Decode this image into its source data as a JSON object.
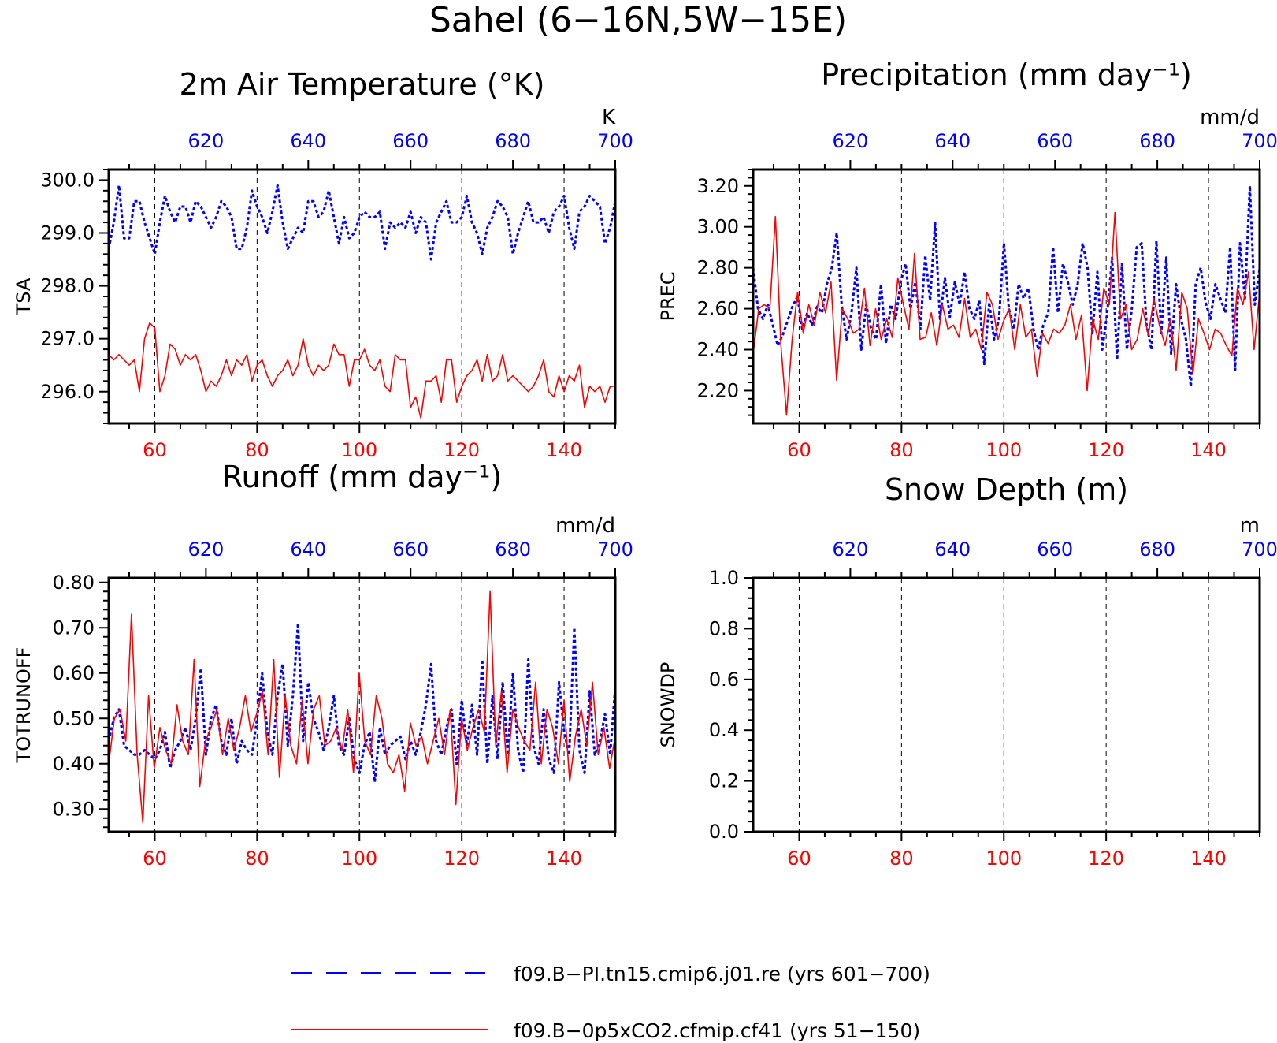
{
  "title": "Sahel (6−16N,5W−15E)",
  "colors": {
    "red": "#ff0000",
    "blue": "#0000ff",
    "axis": "#000000",
    "grid": "#000000"
  },
  "legend": {
    "entries": [
      {
        "label": "f09.B−PI.tn15.cmip6.j01.re (yrs 601−700)",
        "color": "#0000ff",
        "style": "dashed"
      },
      {
        "label": "f09.B−0p5xCO2.cfmip.cf41 (yrs 51−150)",
        "color": "#ff0000",
        "style": "solid"
      }
    ]
  },
  "chart_data": [
    {
      "type": "line",
      "title": "2m Air Temperature (°K)",
      "ylabel": "TSA",
      "units": "K",
      "xlim": [
        51,
        150
      ],
      "x2lim": [
        601,
        700
      ],
      "ylim": [
        295.4,
        300.2
      ],
      "bottom_ticks": [
        "60",
        "80",
        "100",
        "120",
        "140"
      ],
      "top_ticks": [
        "620",
        "640",
        "660",
        "680",
        "700"
      ],
      "y_ticks": [
        "296.0",
        "297.0",
        "298.0",
        "299.0",
        "300.0"
      ],
      "grid": "vertical dashed at x = 60, 80, 100, 120, 140",
      "series": [
        {
          "axis": "top",
          "color": "#0000ff",
          "style": "dashed",
          "values": [
            298.7,
            299.2,
            299.9,
            298.9,
            298.9,
            299.6,
            299.6,
            299.2,
            298.9,
            298.6,
            299.2,
            299.7,
            299.4,
            299.2,
            299.5,
            299.5,
            299.2,
            299.6,
            299.5,
            299.3,
            299.1,
            299.3,
            299.6,
            299.5,
            299.3,
            298.7,
            298.7,
            299.1,
            299.8,
            299.5,
            299.3,
            299.0,
            299.4,
            299.9,
            299.2,
            298.7,
            298.9,
            299.1,
            299.0,
            299.6,
            299.6,
            299.3,
            299.4,
            299.8,
            299.3,
            298.8,
            299.3,
            298.9,
            299.0,
            299.3,
            299.4,
            299.3,
            299.3,
            299.4,
            298.7,
            299.2,
            299.1,
            299.2,
            299.1,
            299.4,
            299.0,
            299.3,
            299.2,
            298.5,
            299.2,
            299.4,
            299.6,
            299.2,
            299.2,
            299.3,
            299.7,
            299.2,
            299.0,
            298.6,
            299.1,
            299.3,
            299.6,
            299.5,
            299.3,
            298.6,
            299.0,
            299.3,
            299.6,
            299.2,
            299.2,
            299.3,
            299.0,
            299.4,
            299.5,
            299.7,
            299.1,
            298.7,
            299.4,
            299.5,
            299.7,
            299.6,
            299.5,
            298.8,
            299.1,
            299.6
          ]
        },
        {
          "axis": "bottom",
          "color": "#ff0000",
          "style": "solid",
          "values": [
            296.7,
            296.6,
            296.7,
            296.6,
            296.5,
            296.6,
            296.0,
            297.0,
            297.3,
            297.2,
            296.0,
            296.3,
            296.9,
            296.8,
            296.5,
            296.7,
            296.6,
            296.7,
            296.4,
            296.0,
            296.2,
            296.1,
            296.3,
            296.6,
            296.3,
            296.6,
            296.5,
            296.7,
            296.2,
            296.5,
            296.6,
            296.3,
            296.1,
            296.3,
            296.4,
            296.6,
            296.3,
            296.5,
            297.0,
            296.5,
            296.3,
            296.5,
            296.4,
            296.5,
            296.9,
            296.7,
            296.7,
            296.1,
            296.6,
            296.6,
            296.8,
            296.5,
            296.4,
            296.6,
            296.1,
            296.0,
            296.7,
            296.6,
            296.6,
            295.7,
            295.9,
            295.5,
            296.2,
            296.2,
            296.3,
            295.8,
            296.6,
            296.6,
            295.8,
            296.1,
            296.3,
            296.4,
            296.6,
            296.2,
            296.7,
            296.2,
            296.3,
            296.7,
            296.2,
            296.3,
            296.2,
            296.1,
            296.0,
            296.1,
            296.3,
            296.6,
            296.0,
            295.9,
            296.3,
            296.0,
            296.3,
            296.2,
            296.5,
            295.7,
            296.1,
            296.0,
            296.1,
            295.8,
            296.1,
            296.1
          ]
        }
      ]
    },
    {
      "type": "line",
      "title": "Precipitation (mm day⁻¹)",
      "ylabel": "PREC",
      "units": "mm/d",
      "xlim": [
        51,
        150
      ],
      "x2lim": [
        601,
        700
      ],
      "ylim": [
        2.04,
        3.28
      ],
      "bottom_ticks": [
        "60",
        "80",
        "100",
        "120",
        "140"
      ],
      "top_ticks": [
        "620",
        "640",
        "660",
        "680",
        "700"
      ],
      "y_ticks": [
        "2.20",
        "2.40",
        "2.60",
        "2.80",
        "3.00",
        "3.20"
      ],
      "grid": "vertical dashed at x = 60, 80, 100, 120, 140",
      "series": [
        {
          "axis": "top",
          "color": "#0000ff",
          "style": "dashed",
          "values": [
            2.8,
            2.6,
            2.55,
            2.62,
            2.52,
            2.42,
            2.47,
            2.54,
            2.61,
            2.66,
            2.5,
            2.58,
            2.52,
            2.61,
            2.58,
            2.72,
            2.8,
            2.97,
            2.62,
            2.45,
            2.58,
            2.8,
            2.4,
            2.62,
            2.5,
            2.45,
            2.72,
            2.43,
            2.62,
            2.55,
            2.73,
            2.82,
            2.6,
            2.73,
            2.5,
            2.86,
            2.64,
            3.02,
            2.55,
            2.75,
            2.56,
            2.73,
            2.62,
            2.78,
            2.6,
            2.55,
            2.64,
            2.33,
            2.63,
            2.45,
            2.55,
            2.92,
            2.6,
            2.5,
            2.72,
            2.65,
            2.7,
            2.5,
            2.4,
            2.52,
            2.58,
            2.9,
            2.58,
            2.82,
            2.73,
            2.62,
            2.72,
            2.92,
            2.8,
            2.48,
            2.78,
            2.4,
            2.58,
            2.85,
            2.35,
            2.82,
            2.4,
            2.6,
            2.9,
            2.92,
            2.52,
            2.4,
            2.93,
            2.48,
            2.85,
            2.38,
            2.72,
            2.55,
            2.45,
            2.22,
            2.72,
            2.8,
            2.63,
            2.55,
            2.72,
            2.65,
            2.58,
            2.9,
            2.3,
            2.92,
            2.65,
            3.2,
            2.62,
            2.8
          ]
        },
        {
          "axis": "bottom",
          "color": "#ff0000",
          "style": "solid",
          "values": [
            2.38,
            2.6,
            2.62,
            2.6,
            3.05,
            2.42,
            2.08,
            2.45,
            2.68,
            2.48,
            2.62,
            2.52,
            2.68,
            2.58,
            2.73,
            2.25,
            2.6,
            2.55,
            2.48,
            2.5,
            2.7,
            2.42,
            2.6,
            2.45,
            2.55,
            2.46,
            2.75,
            2.62,
            2.5,
            2.87,
            2.45,
            2.46,
            2.58,
            2.42,
            2.62,
            2.5,
            2.52,
            2.46,
            2.65,
            2.46,
            2.5,
            2.4,
            2.68,
            2.62,
            2.45,
            2.54,
            2.6,
            2.4,
            2.62,
            2.46,
            2.5,
            2.27,
            2.48,
            2.43,
            2.5,
            2.48,
            2.52,
            2.62,
            2.45,
            2.57,
            2.2,
            2.55,
            2.45,
            2.7,
            2.62,
            3.07,
            2.55,
            2.62,
            2.4,
            2.45,
            2.6,
            2.47,
            2.65,
            2.52,
            2.42,
            2.55,
            2.3,
            2.68,
            2.6,
            2.28,
            2.55,
            2.48,
            2.4,
            2.5,
            2.48,
            2.42,
            2.37,
            2.7,
            2.62,
            2.78,
            2.4,
            2.68
          ]
        }
      ]
    },
    {
      "type": "line",
      "title": "Runoff (mm day⁻¹)",
      "ylabel": "TOTRUNOFF",
      "units": "mm/d",
      "xlim": [
        51,
        150
      ],
      "x2lim": [
        601,
        700
      ],
      "ylim": [
        0.25,
        0.81
      ],
      "bottom_ticks": [
        "60",
        "80",
        "100",
        "120",
        "140"
      ],
      "top_ticks": [
        "620",
        "640",
        "660",
        "680",
        "700"
      ],
      "y_ticks": [
        "0.30",
        "0.40",
        "0.50",
        "0.60",
        "0.70",
        "0.80"
      ],
      "grid": "vertical dashed at x = 60, 80, 100, 120, 140",
      "series": [
        {
          "axis": "top",
          "color": "#0000ff",
          "style": "dashed",
          "values": [
            0.45,
            0.5,
            0.52,
            0.44,
            0.43,
            0.42,
            0.42,
            0.43,
            0.42,
            0.41,
            0.43,
            0.47,
            0.39,
            0.43,
            0.45,
            0.48,
            0.43,
            0.5,
            0.61,
            0.42,
            0.5,
            0.53,
            0.45,
            0.42,
            0.5,
            0.4,
            0.45,
            0.43,
            0.42,
            0.5,
            0.6,
            0.47,
            0.42,
            0.55,
            0.62,
            0.44,
            0.55,
            0.71,
            0.45,
            0.58,
            0.5,
            0.47,
            0.43,
            0.48,
            0.55,
            0.44,
            0.42,
            0.5,
            0.41,
            0.38,
            0.44,
            0.47,
            0.36,
            0.48,
            0.42,
            0.44,
            0.45,
            0.46,
            0.41,
            0.45,
            0.42,
            0.47,
            0.53,
            0.62,
            0.45,
            0.42,
            0.48,
            0.52,
            0.4,
            0.54,
            0.44,
            0.53,
            0.42,
            0.63,
            0.4,
            0.55,
            0.41,
            0.58,
            0.42,
            0.6,
            0.43,
            0.38,
            0.63,
            0.44,
            0.4,
            0.52,
            0.41,
            0.38,
            0.58,
            0.47,
            0.42,
            0.7,
            0.43,
            0.38,
            0.56,
            0.42,
            0.45,
            0.51,
            0.42,
            0.57
          ]
        },
        {
          "axis": "bottom",
          "color": "#ff0000",
          "style": "solid",
          "values": [
            0.4,
            0.5,
            0.52,
            0.45,
            0.73,
            0.42,
            0.27,
            0.55,
            0.39,
            0.48,
            0.43,
            0.4,
            0.53,
            0.45,
            0.42,
            0.63,
            0.35,
            0.45,
            0.48,
            0.52,
            0.42,
            0.5,
            0.43,
            0.48,
            0.55,
            0.47,
            0.51,
            0.56,
            0.42,
            0.63,
            0.37,
            0.55,
            0.44,
            0.4,
            0.54,
            0.4,
            0.52,
            0.55,
            0.44,
            0.45,
            0.48,
            0.43,
            0.52,
            0.38,
            0.6,
            0.45,
            0.42,
            0.55,
            0.5,
            0.4,
            0.38,
            0.42,
            0.34,
            0.49,
            0.44,
            0.46,
            0.4,
            0.45,
            0.5,
            0.42,
            0.52,
            0.31,
            0.5,
            0.43,
            0.48,
            0.52,
            0.47,
            0.78,
            0.44,
            0.56,
            0.38,
            0.52,
            0.48,
            0.45,
            0.43,
            0.58,
            0.4,
            0.52,
            0.48,
            0.4,
            0.54,
            0.36,
            0.46,
            0.52,
            0.44,
            0.58,
            0.42,
            0.48,
            0.39,
            0.46
          ]
        }
      ]
    },
    {
      "type": "line",
      "title": "Snow Depth (m)",
      "ylabel": "SNOWDP",
      "units": "m",
      "xlim": [
        51,
        150
      ],
      "x2lim": [
        601,
        700
      ],
      "ylim": [
        0.0,
        1.0
      ],
      "bottom_ticks": [
        "60",
        "80",
        "100",
        "120",
        "140"
      ],
      "top_ticks": [
        "620",
        "640",
        "660",
        "680",
        "700"
      ],
      "y_ticks": [
        "0.0",
        "0.2",
        "0.4",
        "0.6",
        "0.8",
        "1.0"
      ],
      "grid": "vertical dashed at x = 60, 80, 100, 120, 140",
      "series": []
    }
  ]
}
